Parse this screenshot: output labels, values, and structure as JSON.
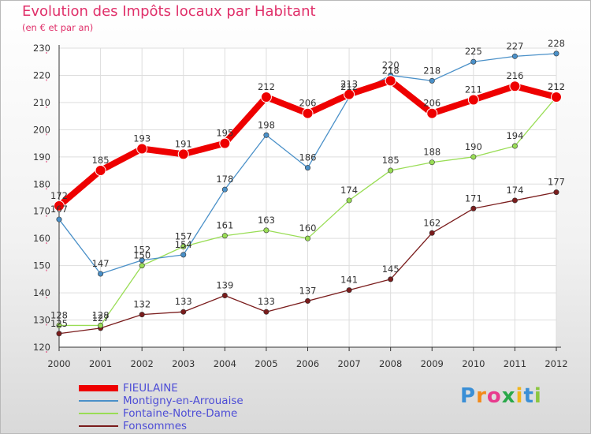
{
  "title": "Evolution des Impôts locaux par Habitant",
  "subtitle": "(en € et par an)",
  "brand": "Proxiti",
  "chart_data": {
    "type": "line",
    "x": [
      "2000",
      "2001",
      "2002",
      "2003",
      "2004",
      "2005",
      "2006",
      "2007",
      "2008",
      "2009",
      "2010",
      "2011",
      "2012"
    ],
    "ylim": [
      120,
      230
    ],
    "yticks": [
      120,
      130,
      140,
      150,
      160,
      170,
      180,
      190,
      200,
      210,
      220,
      230
    ],
    "grid": true,
    "legend_position": "bottom-left",
    "series": [
      {
        "name": "FIEULAINE",
        "color": "#ee0000",
        "values": [
          172,
          185,
          193,
          191,
          195,
          212,
          206,
          213,
          218,
          206,
          211,
          216,
          212
        ]
      },
      {
        "name": "Montigny-en-Arrouaise",
        "color": "#4a90c8",
        "values": [
          167,
          147,
          152,
          154,
          178,
          198,
          186,
          212,
          220,
          218,
          225,
          227,
          228
        ]
      },
      {
        "name": "Fontaine-Notre-Dame",
        "color": "#99dd55",
        "values": [
          128,
          128,
          150,
          157,
          161,
          163,
          160,
          174,
          185,
          188,
          190,
          194,
          212
        ]
      },
      {
        "name": "Fonsommes",
        "color": "#7a1c1c",
        "values": [
          125,
          127,
          132,
          133,
          139,
          133,
          137,
          141,
          145,
          162,
          171,
          174,
          177
        ]
      }
    ]
  }
}
